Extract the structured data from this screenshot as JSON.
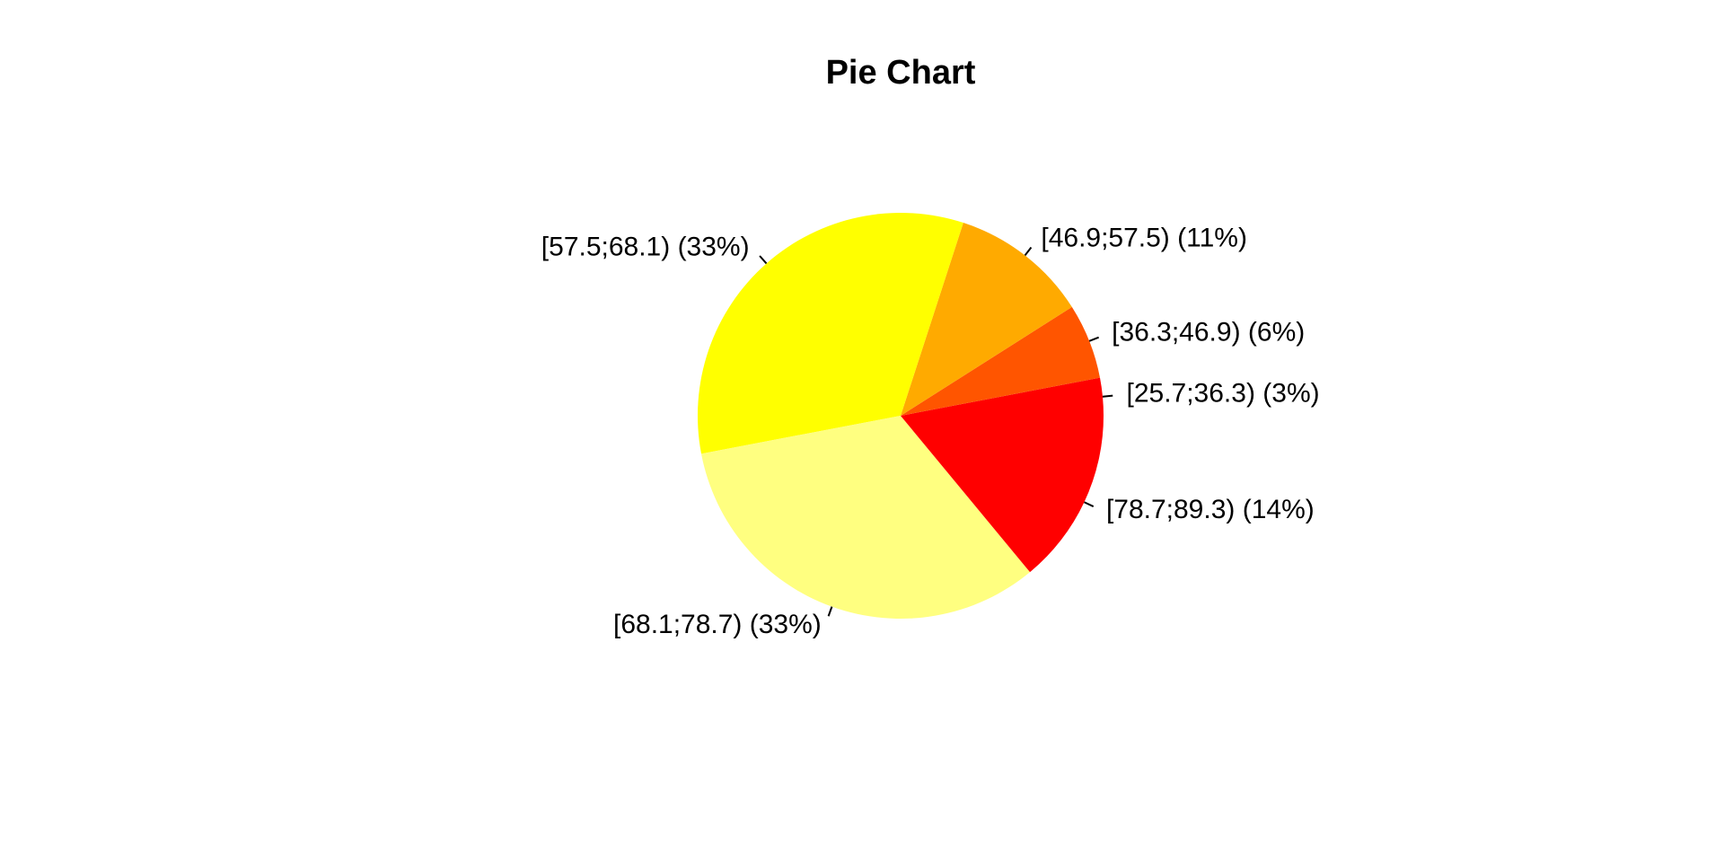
{
  "chart_data": {
    "type": "pie",
    "title": "Pie Chart",
    "direction": "counterclockwise",
    "start_angle_deg": 0,
    "slices": [
      {
        "label": "[25.7;36.3) (3%)",
        "value": 3,
        "color": "#FF0000"
      },
      {
        "label": "[36.3;46.9) (6%)",
        "value": 6,
        "color": "#FF5500"
      },
      {
        "label": "[46.9;57.5) (11%)",
        "value": 11,
        "color": "#FFAA00"
      },
      {
        "label": "[57.5;68.1) (33%)",
        "value": 33,
        "color": "#FFFF00"
      },
      {
        "label": "[68.1;78.7) (33%)",
        "value": 33,
        "color": "#FFFF80"
      },
      {
        "label": "[78.7;89.3) (14%)",
        "value": 14,
        "color": "#FF0000"
      }
    ]
  }
}
